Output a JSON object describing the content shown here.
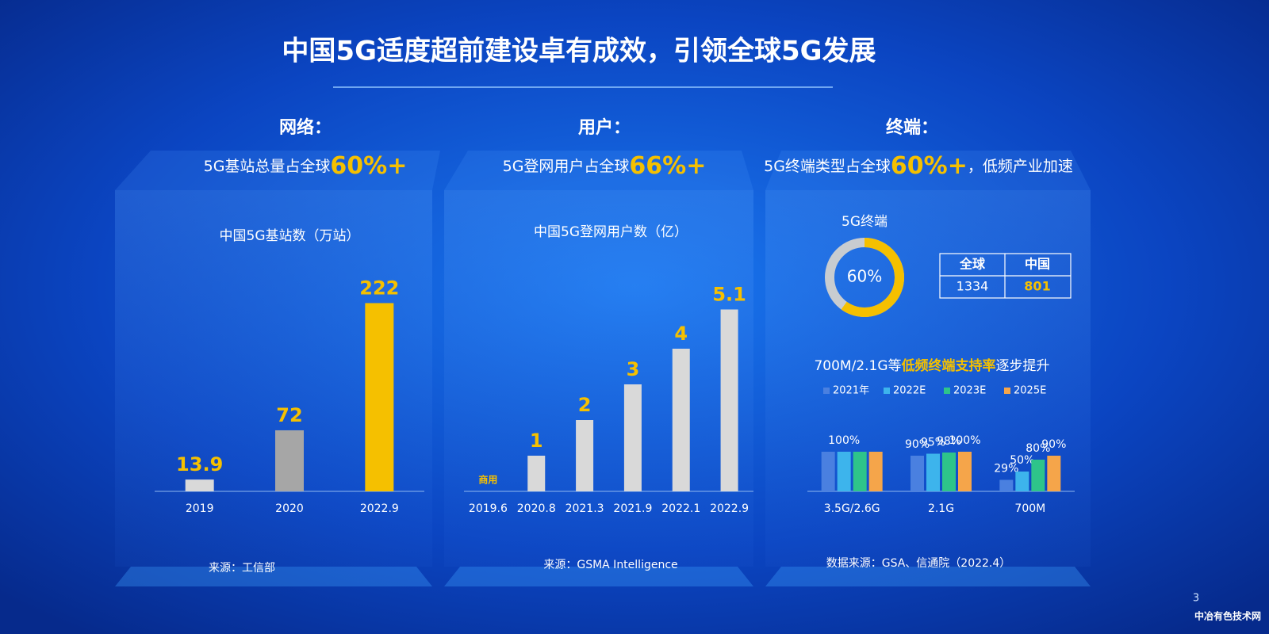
{
  "title": "中国5G适度超前建设卓有成效，引领全球5G发展",
  "panels": [
    {
      "heading": "网络：",
      "summary_prefix": "5G基站总量占全球",
      "summary_highlight": "60%+",
      "source": "来源：工信部"
    },
    {
      "heading": "用户：",
      "summary_prefix": "5G登网用户占全球",
      "summary_highlight": "66%+",
      "source": "来源：GSMA Intelligence"
    },
    {
      "heading": "终端：",
      "summary_prefix": "5G终端类型占全球",
      "summary_highlight": "60%+",
      "summary_suffix": "，低频产业加速",
      "source": "数据来源：GSA、信通院（2022.4）"
    }
  ],
  "table": {
    "header": [
      "全球",
      "中国"
    ],
    "rows": [
      [
        "1334",
        "801"
      ]
    ]
  },
  "page_number": "3",
  "watermark": "中冶有色技术网",
  "chart_data": [
    {
      "type": "bar",
      "title": "中国5G基站数（万站）",
      "categories": [
        "2019",
        "2020",
        "2022.9"
      ],
      "values": [
        13.9,
        72,
        222
      ],
      "colors": [
        "#d9d9d9",
        "#a6a6a6",
        "#f5c000"
      ]
    },
    {
      "type": "bar",
      "title": "中国5G登网用户数（亿）",
      "categories": [
        "2019.6",
        "2020.8",
        "2021.3",
        "2021.9",
        "2022.1",
        "2022.9"
      ],
      "values": [
        null,
        1,
        2,
        3,
        4,
        5.1
      ],
      "color": "#d9d9d9",
      "annotation": "商用"
    },
    {
      "type": "donut",
      "title": "5G终端",
      "values": [
        60
      ],
      "value_labels": [
        "60%"
      ],
      "color": "#f5c000"
    },
    {
      "type": "bar",
      "title": "700M/2.1G等",
      "title_highlight": "低频终端支持率",
      "title_suffix": "逐步提升",
      "categories": [
        "3.5G/2.6G",
        "2.1G",
        "700M"
      ],
      "series": [
        {
          "name": "2021年",
          "color": "#4a80e0",
          "values": [
            100,
            90,
            29
          ],
          "value_labels": [
            null,
            "90%",
            "29%"
          ]
        },
        {
          "name": "2022E",
          "color": "#3db4ec",
          "values": [
            100,
            95,
            50
          ],
          "value_labels": [
            "100%",
            "95%",
            "50%"
          ]
        },
        {
          "name": "2023E",
          "color": "#2ec48a",
          "values": [
            100,
            98,
            80
          ],
          "value_labels": [
            null,
            "98%",
            "80%"
          ]
        },
        {
          "name": "2025E",
          "color": "#f5a54a",
          "values": [
            100,
            100,
            90
          ],
          "value_labels": [
            null,
            "100%",
            "90%"
          ]
        }
      ]
    }
  ]
}
